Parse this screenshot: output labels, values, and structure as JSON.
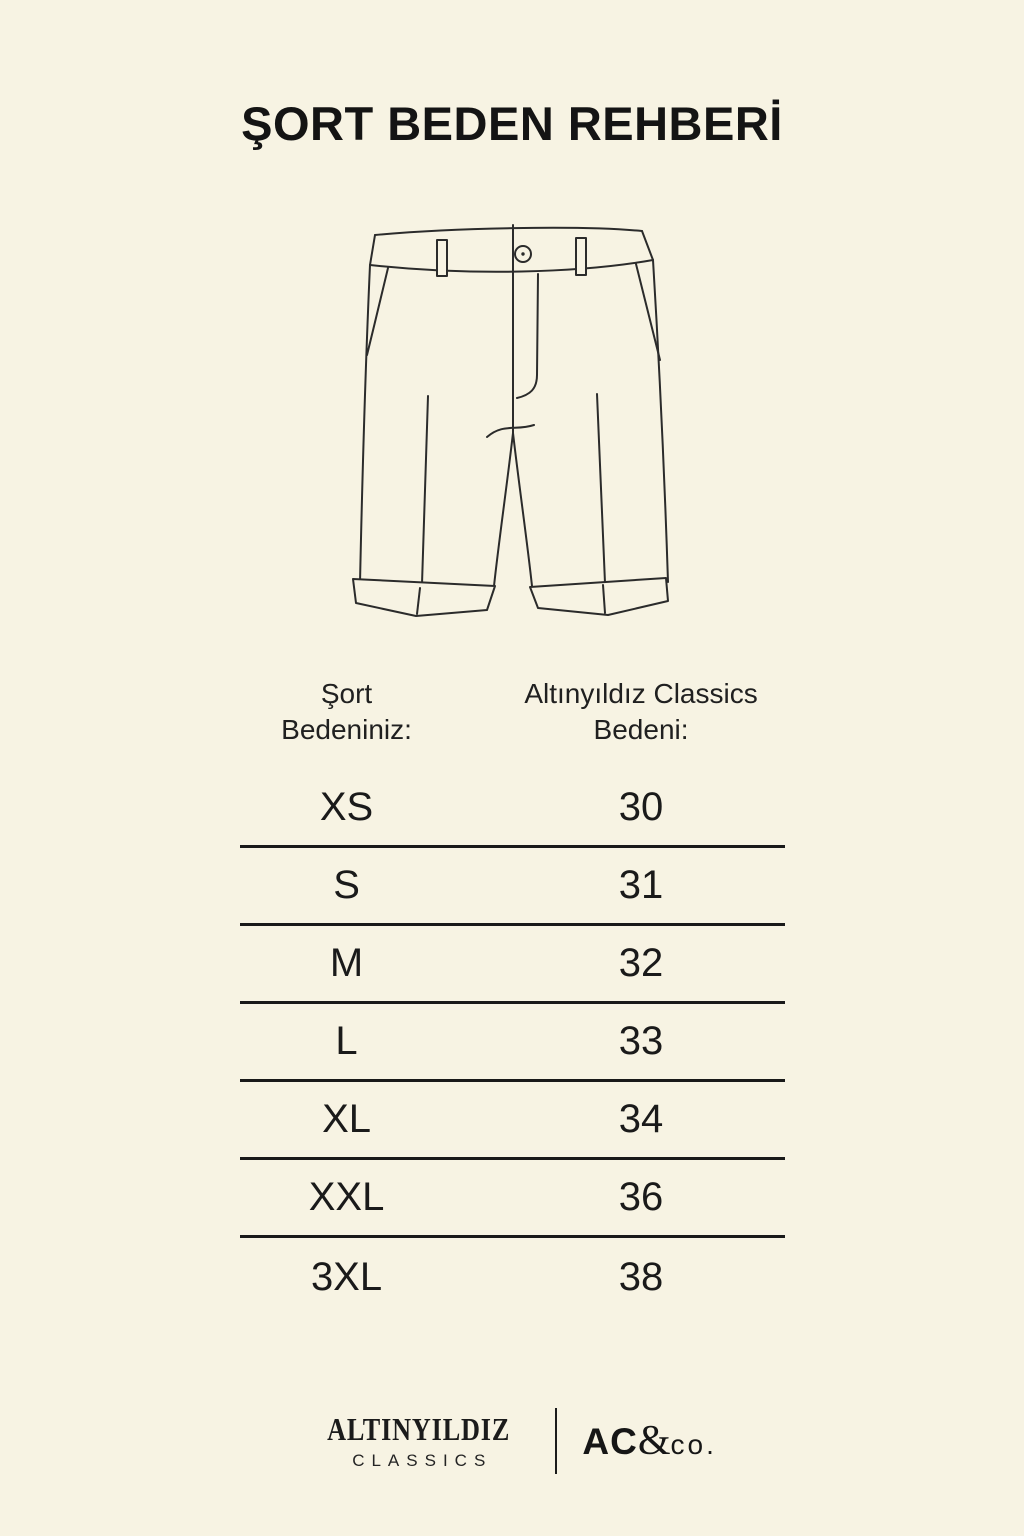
{
  "title": "ŞORT BEDEN REHBERİ",
  "illustration": {
    "name": "shorts-line-drawing"
  },
  "table": {
    "col1_header": "Şort\nBedeniniz:",
    "col2_header": "Altınyıldız Classics\nBedeni:",
    "rows": [
      {
        "size": "XS",
        "value": "30"
      },
      {
        "size": "S",
        "value": "31"
      },
      {
        "size": "M",
        "value": "32"
      },
      {
        "size": "L",
        "value": "33"
      },
      {
        "size": "XL",
        "value": "34"
      },
      {
        "size": "XXL",
        "value": "36"
      },
      {
        "size": "3XL",
        "value": "38"
      }
    ]
  },
  "footer": {
    "brand_primary": "ALTINYILDIZ",
    "brand_secondary": "CLASSICS",
    "ac": "AC",
    "amp": "&",
    "co": "co."
  },
  "colors": {
    "background": "#F7F3E3",
    "ink": "#1B1B1B",
    "illustration_stroke": "#2B2B2B",
    "table_line": "#191919"
  }
}
